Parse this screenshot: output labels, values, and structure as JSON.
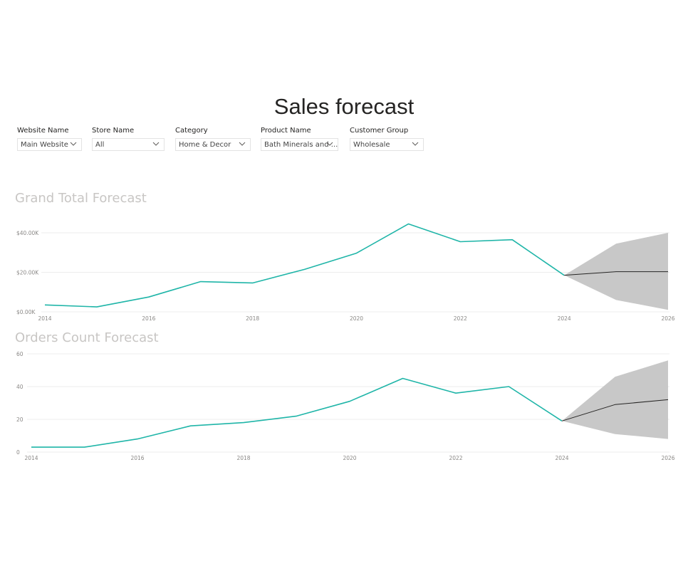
{
  "page": {
    "title": "Sales forecast"
  },
  "filters": [
    {
      "label": "Website Name",
      "value": "Main Website",
      "icon": "chevron-down-icon"
    },
    {
      "label": "Store Name",
      "value": "All",
      "icon": "chevron-down-icon"
    },
    {
      "label": "Category",
      "value": "Home & Decor",
      "icon": "chevron-down-icon"
    },
    {
      "label": "Product Name",
      "value": "Bath Minerals and ...",
      "icon": "chevron-down-icon"
    },
    {
      "label": "Customer Group",
      "value": "Wholesale",
      "icon": "chevron-down-icon"
    }
  ],
  "colors": {
    "actual_line": "#1fb5a8",
    "forecast_line": "#252423",
    "confidence_band": "#c8c8c8",
    "gridline": "#ececec",
    "title_muted": "#c8c6c4"
  },
  "chart_data": [
    {
      "type": "line",
      "title": "Grand Total Forecast",
      "x_tick_labels": [
        "2014",
        "2016",
        "2018",
        "2020",
        "2022",
        "2024",
        "2026"
      ],
      "y_tick_labels": [
        "$0.00K",
        "$20.00K",
        "$40.00K"
      ],
      "y_ticks": [
        0,
        20000,
        40000
      ],
      "ylim": [
        0,
        40000
      ],
      "xlim": [
        2014,
        2026
      ],
      "grid": true,
      "series": [
        {
          "x": [
            2014,
            2015,
            2016,
            2017,
            2018,
            2019,
            2020,
            2021,
            2022,
            2023,
            2024
          ],
          "values": [
            3500,
            2500,
            7500,
            15300,
            14600,
            21500,
            29700,
            44500,
            35500,
            36500,
            18500
          ]
        }
      ],
      "forecast": {
        "x": [
          2024,
          2025,
          2026
        ],
        "values": [
          18500,
          20300,
          20300
        ],
        "upper": [
          18500,
          34500,
          40000
        ],
        "lower": [
          18500,
          6000,
          1000
        ]
      }
    },
    {
      "type": "line",
      "title": "Orders Count Forecast",
      "x_tick_labels": [
        "2014",
        "2016",
        "2018",
        "2020",
        "2022",
        "2024",
        "2026"
      ],
      "y_tick_labels": [
        "0",
        "20",
        "40",
        "60"
      ],
      "y_ticks": [
        0,
        20,
        40,
        60
      ],
      "ylim": [
        0,
        60
      ],
      "xlim": [
        2014,
        2026
      ],
      "grid": true,
      "series": [
        {
          "x": [
            2014,
            2015,
            2016,
            2017,
            2018,
            2019,
            2020,
            2021,
            2022,
            2023,
            2024
          ],
          "values": [
            3,
            3,
            8,
            16,
            18,
            22,
            31,
            45,
            36,
            40,
            19
          ]
        }
      ],
      "forecast": {
        "x": [
          2024,
          2025,
          2026
        ],
        "values": [
          19,
          29,
          32
        ],
        "upper": [
          19,
          46,
          56
        ],
        "lower": [
          19,
          11,
          8
        ]
      }
    }
  ]
}
